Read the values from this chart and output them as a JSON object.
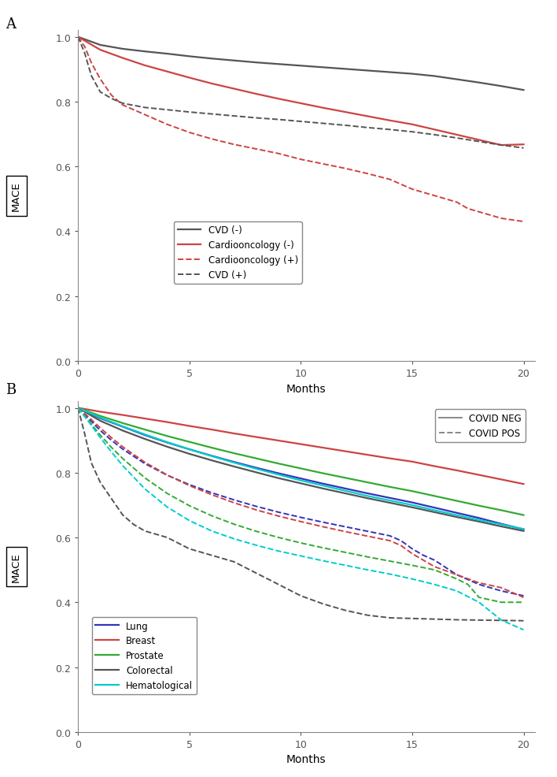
{
  "panel_A": {
    "xlabel": "Months",
    "xlim": [
      0,
      20.5
    ],
    "ylim": [
      0.0,
      1.02
    ],
    "yticks": [
      0.0,
      0.2,
      0.4,
      0.6,
      0.8,
      1.0
    ],
    "xticks": [
      0,
      5,
      10,
      15,
      20
    ],
    "curves": [
      {
        "label": "CVD (-)",
        "color": "#555555",
        "linestyle": "solid",
        "linewidth": 1.6,
        "x": [
          0,
          1,
          2,
          3,
          4,
          5,
          6,
          7,
          8,
          9,
          10,
          11,
          12,
          13,
          14,
          15,
          16,
          17,
          18,
          19,
          20
        ],
        "y": [
          1.0,
          0.975,
          0.963,
          0.955,
          0.948,
          0.94,
          0.933,
          0.927,
          0.921,
          0.916,
          0.911,
          0.906,
          0.901,
          0.896,
          0.891,
          0.886,
          0.879,
          0.869,
          0.859,
          0.848,
          0.836
        ]
      },
      {
        "label": "Cardiooncology (-)",
        "color": "#cc4444",
        "linestyle": "solid",
        "linewidth": 1.6,
        "x": [
          0,
          1,
          2,
          3,
          4,
          5,
          6,
          7,
          8,
          9,
          10,
          11,
          12,
          13,
          14,
          15,
          16,
          17,
          18,
          19,
          20
        ],
        "y": [
          1.0,
          0.96,
          0.935,
          0.912,
          0.893,
          0.874,
          0.856,
          0.84,
          0.824,
          0.809,
          0.795,
          0.781,
          0.768,
          0.755,
          0.742,
          0.73,
          0.714,
          0.698,
          0.682,
          0.666,
          0.668
        ]
      },
      {
        "label": "Cardiooncology (+)",
        "color": "#cc4444",
        "linestyle": "dashed",
        "linewidth": 1.4,
        "x": [
          0,
          0.3,
          0.6,
          1,
          1.5,
          2,
          3,
          4,
          5,
          6,
          7,
          8,
          9,
          10,
          11,
          12,
          13,
          14,
          15,
          16,
          17,
          17.5,
          18,
          18.5,
          19,
          19.5,
          20
        ],
        "y": [
          1.0,
          0.97,
          0.92,
          0.87,
          0.82,
          0.79,
          0.76,
          0.73,
          0.705,
          0.685,
          0.668,
          0.654,
          0.64,
          0.622,
          0.608,
          0.594,
          0.578,
          0.56,
          0.53,
          0.51,
          0.49,
          0.47,
          0.46,
          0.45,
          0.44,
          0.435,
          0.43
        ]
      },
      {
        "label": "CVD (+)",
        "color": "#555555",
        "linestyle": "dashed",
        "linewidth": 1.4,
        "x": [
          0,
          0.3,
          0.6,
          1,
          1.5,
          2,
          3,
          4,
          5,
          6,
          7,
          8,
          9,
          10,
          11,
          12,
          13,
          14,
          15,
          16,
          17,
          18,
          19,
          20
        ],
        "y": [
          1.0,
          0.95,
          0.88,
          0.83,
          0.81,
          0.795,
          0.782,
          0.775,
          0.768,
          0.762,
          0.756,
          0.75,
          0.745,
          0.739,
          0.733,
          0.727,
          0.72,
          0.714,
          0.707,
          0.698,
          0.688,
          0.677,
          0.666,
          0.657
        ]
      }
    ]
  },
  "panel_B": {
    "xlabel": "Months",
    "xlim": [
      0,
      20.5
    ],
    "ylim": [
      0.0,
      1.02
    ],
    "yticks": [
      0.0,
      0.2,
      0.4,
      0.6,
      0.8,
      1.0
    ],
    "xticks": [
      0,
      5,
      10,
      15,
      20
    ],
    "curves_neg": [
      {
        "label": "Lung",
        "color": "#3333bb",
        "linestyle": "solid",
        "linewidth": 1.6,
        "x": [
          0,
          1,
          2,
          3,
          4,
          5,
          6,
          7,
          8,
          9,
          10,
          11,
          12,
          13,
          14,
          15,
          16,
          17,
          18,
          19,
          20
        ],
        "y": [
          1.0,
          0.968,
          0.942,
          0.916,
          0.893,
          0.872,
          0.852,
          0.833,
          0.815,
          0.798,
          0.782,
          0.766,
          0.751,
          0.736,
          0.722,
          0.708,
          0.692,
          0.676,
          0.66,
          0.642,
          0.625
        ]
      },
      {
        "label": "Breast",
        "color": "#cc4444",
        "linestyle": "solid",
        "linewidth": 1.6,
        "x": [
          0,
          1,
          2,
          3,
          4,
          5,
          6,
          7,
          8,
          9,
          10,
          11,
          12,
          13,
          14,
          15,
          16,
          17,
          18,
          19,
          20
        ],
        "y": [
          1.0,
          0.988,
          0.978,
          0.967,
          0.956,
          0.944,
          0.933,
          0.921,
          0.91,
          0.899,
          0.888,
          0.877,
          0.866,
          0.855,
          0.844,
          0.834,
          0.82,
          0.807,
          0.793,
          0.779,
          0.765
        ]
      },
      {
        "label": "Prostate",
        "color": "#33aa33",
        "linestyle": "solid",
        "linewidth": 1.6,
        "x": [
          0,
          1,
          2,
          3,
          4,
          5,
          6,
          7,
          8,
          9,
          10,
          11,
          12,
          13,
          14,
          15,
          16,
          17,
          18,
          19,
          20
        ],
        "y": [
          1.0,
          0.975,
          0.953,
          0.933,
          0.913,
          0.895,
          0.877,
          0.86,
          0.844,
          0.828,
          0.813,
          0.798,
          0.784,
          0.77,
          0.756,
          0.743,
          0.728,
          0.713,
          0.698,
          0.684,
          0.669
        ]
      },
      {
        "label": "Colorectal",
        "color": "#555555",
        "linestyle": "solid",
        "linewidth": 1.6,
        "x": [
          0,
          1,
          2,
          3,
          4,
          5,
          6,
          7,
          8,
          9,
          10,
          11,
          12,
          13,
          14,
          15,
          16,
          17,
          18,
          19,
          20
        ],
        "y": [
          1.0,
          0.96,
          0.93,
          0.904,
          0.88,
          0.858,
          0.838,
          0.819,
          0.801,
          0.783,
          0.767,
          0.751,
          0.736,
          0.721,
          0.707,
          0.693,
          0.678,
          0.663,
          0.649,
          0.634,
          0.62
        ]
      },
      {
        "label": "Hematological",
        "color": "#00cccc",
        "linestyle": "solid",
        "linewidth": 1.6,
        "x": [
          0,
          1,
          2,
          3,
          4,
          5,
          6,
          7,
          8,
          9,
          10,
          11,
          12,
          13,
          14,
          15,
          16,
          17,
          18,
          19,
          20
        ],
        "y": [
          1.0,
          0.97,
          0.943,
          0.918,
          0.894,
          0.872,
          0.851,
          0.831,
          0.812,
          0.794,
          0.776,
          0.76,
          0.744,
          0.728,
          0.714,
          0.7,
          0.684,
          0.669,
          0.654,
          0.64,
          0.626
        ]
      }
    ],
    "curves_pos": [
      {
        "label": "Lung_pos",
        "color": "#3333bb",
        "linestyle": "dashed",
        "linewidth": 1.4,
        "x": [
          0,
          0.5,
          1,
          1.5,
          2,
          3,
          4,
          5,
          6,
          7,
          8,
          9,
          10,
          11,
          12,
          13,
          14,
          14.5,
          15,
          15.5,
          16,
          17,
          18,
          19,
          20
        ],
        "y": [
          1.0,
          0.965,
          0.93,
          0.9,
          0.873,
          0.828,
          0.792,
          0.763,
          0.738,
          0.716,
          0.696,
          0.678,
          0.662,
          0.647,
          0.633,
          0.619,
          0.605,
          0.59,
          0.565,
          0.545,
          0.53,
          0.485,
          0.455,
          0.435,
          0.42
        ]
      },
      {
        "label": "Breast_pos",
        "color": "#cc4444",
        "linestyle": "dashed",
        "linewidth": 1.4,
        "x": [
          0,
          0.5,
          1,
          1.5,
          2,
          3,
          4,
          5,
          6,
          7,
          8,
          9,
          10,
          11,
          12,
          13,
          14,
          14.5,
          15,
          16,
          17,
          18,
          19,
          20
        ],
        "y": [
          1.0,
          0.97,
          0.938,
          0.908,
          0.88,
          0.832,
          0.793,
          0.76,
          0.732,
          0.707,
          0.685,
          0.666,
          0.649,
          0.633,
          0.618,
          0.604,
          0.59,
          0.575,
          0.55,
          0.51,
          0.485,
          0.46,
          0.445,
          0.415
        ]
      },
      {
        "label": "Prostate_pos",
        "color": "#33aa33",
        "linestyle": "dashed",
        "linewidth": 1.4,
        "x": [
          0,
          0.5,
          1,
          1.5,
          2,
          3,
          4,
          5,
          6,
          7,
          8,
          9,
          10,
          11,
          12,
          13,
          14,
          15,
          16,
          17,
          17.5,
          18,
          19,
          20
        ],
        "y": [
          1.0,
          0.958,
          0.916,
          0.878,
          0.844,
          0.784,
          0.736,
          0.698,
          0.667,
          0.641,
          0.619,
          0.6,
          0.583,
          0.568,
          0.554,
          0.54,
          0.527,
          0.514,
          0.5,
          0.472,
          0.455,
          0.415,
          0.4,
          0.4
        ]
      },
      {
        "label": "Colorectal_pos",
        "color": "#555555",
        "linestyle": "dashed",
        "linewidth": 1.4,
        "x": [
          0,
          0.3,
          0.6,
          1,
          1.5,
          2,
          2.5,
          3,
          4,
          5,
          6,
          7,
          8,
          9,
          10,
          11,
          12,
          13,
          14,
          15,
          16,
          17,
          18,
          19,
          20
        ],
        "y": [
          1.0,
          0.92,
          0.83,
          0.77,
          0.72,
          0.67,
          0.64,
          0.62,
          0.6,
          0.565,
          0.545,
          0.525,
          0.49,
          0.455,
          0.42,
          0.395,
          0.375,
          0.36,
          0.352,
          0.35,
          0.348,
          0.346,
          0.345,
          0.344,
          0.343
        ]
      },
      {
        "label": "Hematological_pos",
        "color": "#00cccc",
        "linestyle": "dashed",
        "linewidth": 1.4,
        "x": [
          0,
          0.5,
          1,
          1.5,
          2,
          3,
          4,
          5,
          6,
          7,
          8,
          9,
          10,
          11,
          12,
          13,
          14,
          15,
          16,
          17,
          18,
          19,
          19.5,
          20
        ],
        "y": [
          1.0,
          0.955,
          0.908,
          0.864,
          0.822,
          0.75,
          0.694,
          0.652,
          0.62,
          0.596,
          0.576,
          0.558,
          0.543,
          0.528,
          0.514,
          0.5,
          0.487,
          0.472,
          0.455,
          0.435,
          0.4,
          0.345,
          0.33,
          0.315
        ]
      }
    ]
  },
  "background_color": "#ffffff",
  "panel_label_fontsize": 13,
  "axis_label_fontsize": 10,
  "tick_fontsize": 9,
  "legend_fontsize": 8.5
}
